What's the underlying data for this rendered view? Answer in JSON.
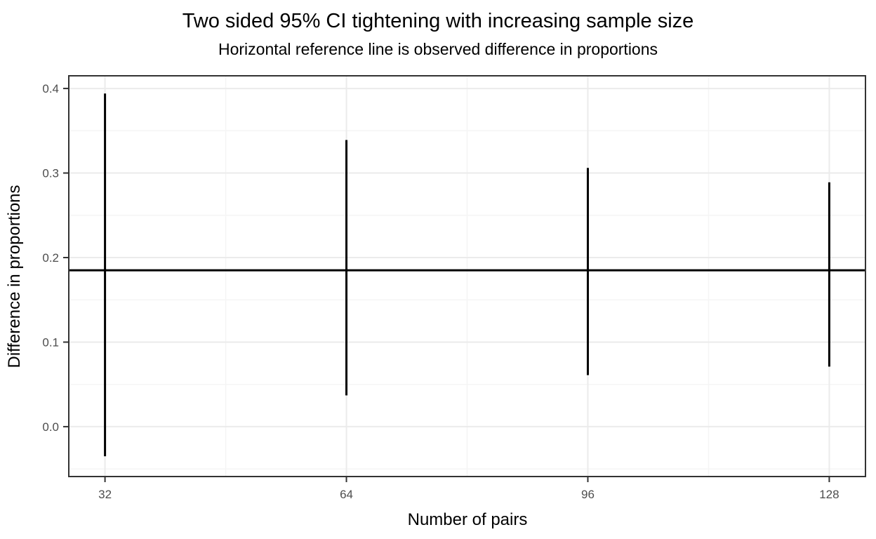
{
  "chart_data": {
    "type": "errorbar",
    "title": "Two sided 95% CI tightening with increasing sample size",
    "subtitle": "Horizontal reference line is observed difference in proportions",
    "xlabel": "Number of pairs",
    "ylabel": "Difference in proportions",
    "x": [
      32,
      64,
      96,
      128
    ],
    "series": [
      {
        "name": "95% confidence interval",
        "lower": [
          -0.035,
          0.037,
          0.061,
          0.071
        ],
        "upper": [
          0.394,
          0.339,
          0.306,
          0.289
        ]
      }
    ],
    "reference_line_y": 0.185,
    "x_tick_labels": [
      "32",
      "64",
      "96",
      "128"
    ],
    "x_tick_values": [
      32,
      64,
      96,
      128
    ],
    "y_tick_labels": [
      "0.0",
      "0.1",
      "0.2",
      "0.3",
      "0.4"
    ],
    "y_tick_values": [
      0.0,
      0.1,
      0.2,
      0.3,
      0.4
    ],
    "x_minor_values": [
      48,
      80,
      112
    ],
    "y_minor_values": [
      -0.05,
      0.05,
      0.15,
      0.25,
      0.35
    ],
    "xlim": [
      27.2,
      132.8
    ],
    "ylim": [
      -0.059,
      0.415
    ],
    "grid": true,
    "legend": "none",
    "colors": {
      "bar": "#000000",
      "reference_line": "#000000",
      "panel_border": "#333333",
      "grid_major": "#ebebeb",
      "grid_minor": "#f5f5f5",
      "tick_mark": "#333333",
      "tick_label": "#4d4d4d",
      "title": "#000000",
      "background": "#ffffff"
    }
  }
}
